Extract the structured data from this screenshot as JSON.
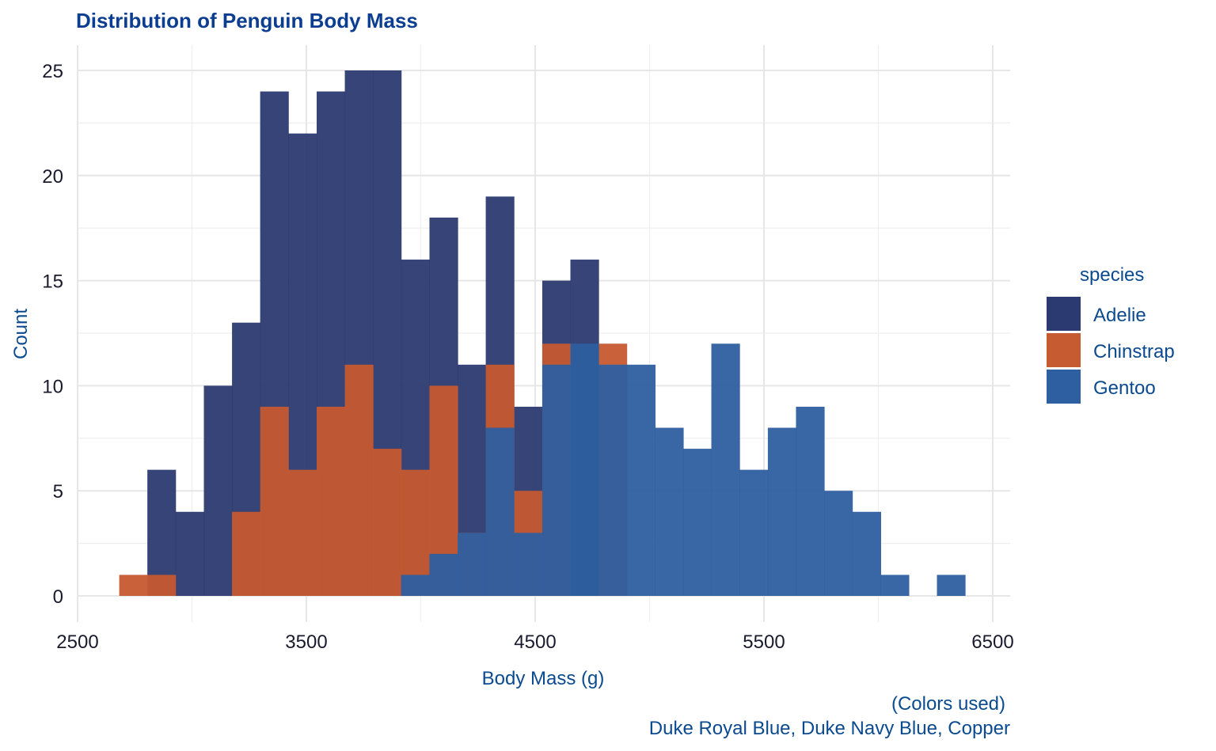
{
  "chart_data": {
    "type": "bar",
    "subtype": "histogram",
    "title": "Distribution of Penguin Body Mass",
    "xlabel": "Body Mass (g)",
    "ylabel": "Count",
    "xlim": [
      2500,
      6500
    ],
    "ylim": [
      0,
      25
    ],
    "x_ticks": [
      2500,
      3500,
      4500,
      5500,
      6500
    ],
    "y_ticks": [
      0,
      5,
      10,
      15,
      20,
      25
    ],
    "bin_width": 123,
    "grid": true,
    "legend": {
      "title": "species",
      "position": "right"
    },
    "caption": [
      "(Colors used)",
      "Duke Royal Blue, Duke Navy Blue, Copper"
    ],
    "series": [
      {
        "name": "Adelie",
        "color": "#2b3a70",
        "bins": [
          {
            "x0": 2805,
            "x1": 2928,
            "count": 6
          },
          {
            "x0": 2928,
            "x1": 3052,
            "count": 4
          },
          {
            "x0": 3052,
            "x1": 3175,
            "count": 10
          },
          {
            "x0": 3175,
            "x1": 3298,
            "count": 13
          },
          {
            "x0": 3298,
            "x1": 3421,
            "count": 24
          },
          {
            "x0": 3421,
            "x1": 3545,
            "count": 22
          },
          {
            "x0": 3545,
            "x1": 3668,
            "count": 24
          },
          {
            "x0": 3668,
            "x1": 3791,
            "count": 25
          },
          {
            "x0": 3791,
            "x1": 3914,
            "count": 25
          },
          {
            "x0": 3914,
            "x1": 4038,
            "count": 16
          },
          {
            "x0": 4038,
            "x1": 4161,
            "count": 18
          },
          {
            "x0": 4161,
            "x1": 4284,
            "count": 11
          },
          {
            "x0": 4284,
            "x1": 4407,
            "count": 19
          },
          {
            "x0": 4407,
            "x1": 4531,
            "count": 9
          },
          {
            "x0": 4531,
            "x1": 4654,
            "count": 15
          },
          {
            "x0": 4654,
            "x1": 4777,
            "count": 16
          }
        ]
      },
      {
        "name": "Chinstrap",
        "color": "#c65a30",
        "bins": [
          {
            "x0": 2682,
            "x1": 2805,
            "count": 1
          },
          {
            "x0": 2805,
            "x1": 2928,
            "count": 1
          },
          {
            "x0": 3175,
            "x1": 3298,
            "count": 4
          },
          {
            "x0": 3298,
            "x1": 3421,
            "count": 9
          },
          {
            "x0": 3421,
            "x1": 3545,
            "count": 6
          },
          {
            "x0": 3545,
            "x1": 3668,
            "count": 9
          },
          {
            "x0": 3668,
            "x1": 3791,
            "count": 11
          },
          {
            "x0": 3791,
            "x1": 3914,
            "count": 7
          },
          {
            "x0": 3914,
            "x1": 4038,
            "count": 6
          },
          {
            "x0": 4038,
            "x1": 4161,
            "count": 10
          },
          {
            "x0": 4161,
            "x1": 4284,
            "count": 3
          },
          {
            "x0": 4284,
            "x1": 4407,
            "count": 11
          },
          {
            "x0": 4407,
            "x1": 4531,
            "count": 5
          },
          {
            "x0": 4531,
            "x1": 4654,
            "count": 12
          },
          {
            "x0": 4777,
            "x1": 4900,
            "count": 12
          }
        ]
      },
      {
        "name": "Gentoo",
        "color": "#2e5fa0",
        "bins": [
          {
            "x0": 3914,
            "x1": 4038,
            "count": 1
          },
          {
            "x0": 4038,
            "x1": 4161,
            "count": 2
          },
          {
            "x0": 4161,
            "x1": 4284,
            "count": 3
          },
          {
            "x0": 4284,
            "x1": 4407,
            "count": 8
          },
          {
            "x0": 4407,
            "x1": 4531,
            "count": 3
          },
          {
            "x0": 4531,
            "x1": 4654,
            "count": 11
          },
          {
            "x0": 4654,
            "x1": 4777,
            "count": 12
          },
          {
            "x0": 4777,
            "x1": 4900,
            "count": 11
          },
          {
            "x0": 4900,
            "x1": 5024,
            "count": 11
          },
          {
            "x0": 5024,
            "x1": 5147,
            "count": 8
          },
          {
            "x0": 5147,
            "x1": 5270,
            "count": 7
          },
          {
            "x0": 5270,
            "x1": 5393,
            "count": 12
          },
          {
            "x0": 5393,
            "x1": 5517,
            "count": 6
          },
          {
            "x0": 5517,
            "x1": 5640,
            "count": 8
          },
          {
            "x0": 5640,
            "x1": 5763,
            "count": 9
          },
          {
            "x0": 5763,
            "x1": 5886,
            "count": 5
          },
          {
            "x0": 5886,
            "x1": 6010,
            "count": 4
          },
          {
            "x0": 6010,
            "x1": 6133,
            "count": 1
          },
          {
            "x0": 6256,
            "x1": 6379,
            "count": 1
          }
        ]
      }
    ]
  }
}
